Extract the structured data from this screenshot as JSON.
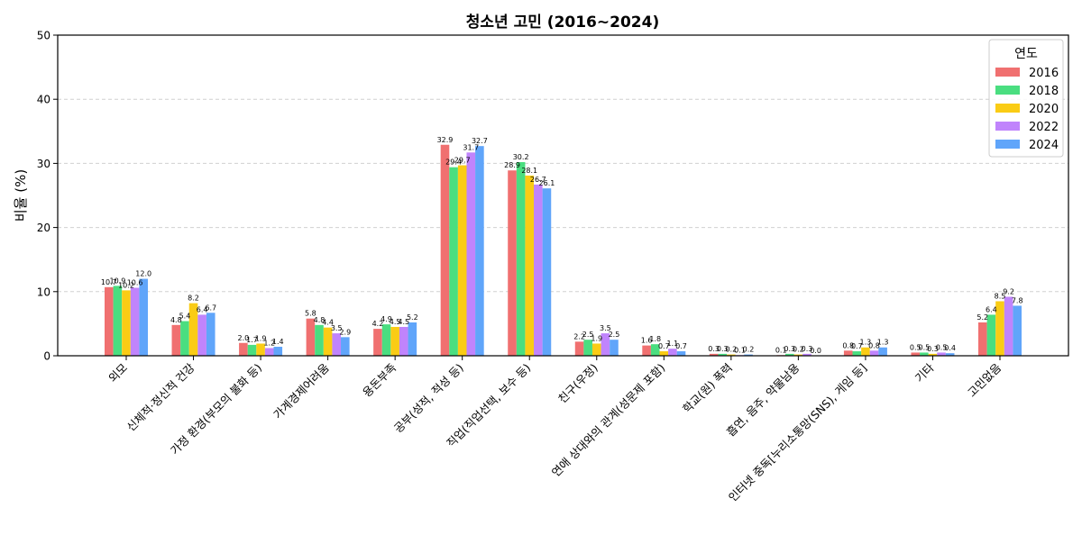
{
  "chart_data": {
    "type": "bar",
    "title": "청소년 고민 (2016~2024)",
    "xlabel": "",
    "ylabel": "비율 (%)",
    "ylim": [
      0,
      50
    ],
    "yticks": [
      0,
      10,
      20,
      30,
      40,
      50
    ],
    "grid": "y-dashed",
    "legend_title": "연도",
    "legend_position": "top-right",
    "categories": [
      "외모",
      "신체적·정신적 건강",
      "가정 환경(부모의 불화 등)",
      "가계경제어려움",
      "용돈부족",
      "공부(성적, 적성 등)",
      "직업(직업선택, 보수 등)",
      "친구(우정)",
      "연애 상대와의 관계(성문제 포함)",
      "학교(원) 폭력",
      "흡연, 음주, 약물남용",
      "인터넷 중독[누리소통망(SNS), 게임 등]",
      "기타",
      "고민없음"
    ],
    "series": [
      {
        "name": "2016",
        "color": "#f07070",
        "values": [
          10.7,
          4.8,
          2.0,
          5.8,
          4.2,
          32.9,
          28.9,
          2.2,
          1.6,
          0.3,
          0.1,
          0.8,
          0.5,
          5.2
        ]
      },
      {
        "name": "2018",
        "color": "#4ade80",
        "values": [
          10.9,
          5.4,
          1.7,
          4.8,
          4.9,
          29.4,
          30.2,
          2.5,
          1.8,
          0.3,
          0.3,
          0.7,
          0.5,
          6.4
        ]
      },
      {
        "name": "2020",
        "color": "#facc15",
        "values": [
          10.2,
          8.2,
          1.9,
          4.4,
          4.5,
          29.7,
          28.1,
          1.9,
          0.7,
          0.2,
          0.2,
          1.3,
          0.3,
          8.5
        ]
      },
      {
        "name": "2022",
        "color": "#c084fc",
        "values": [
          10.6,
          6.4,
          1.2,
          3.5,
          4.5,
          31.7,
          26.7,
          3.5,
          1.1,
          0.1,
          0.3,
          0.8,
          0.5,
          9.2
        ]
      },
      {
        "name": "2024",
        "color": "#60a5fa",
        "values": [
          12.0,
          6.7,
          1.4,
          2.9,
          5.2,
          32.7,
          26.1,
          2.5,
          0.7,
          0.2,
          0.0,
          1.3,
          0.4,
          7.8
        ]
      }
    ]
  }
}
